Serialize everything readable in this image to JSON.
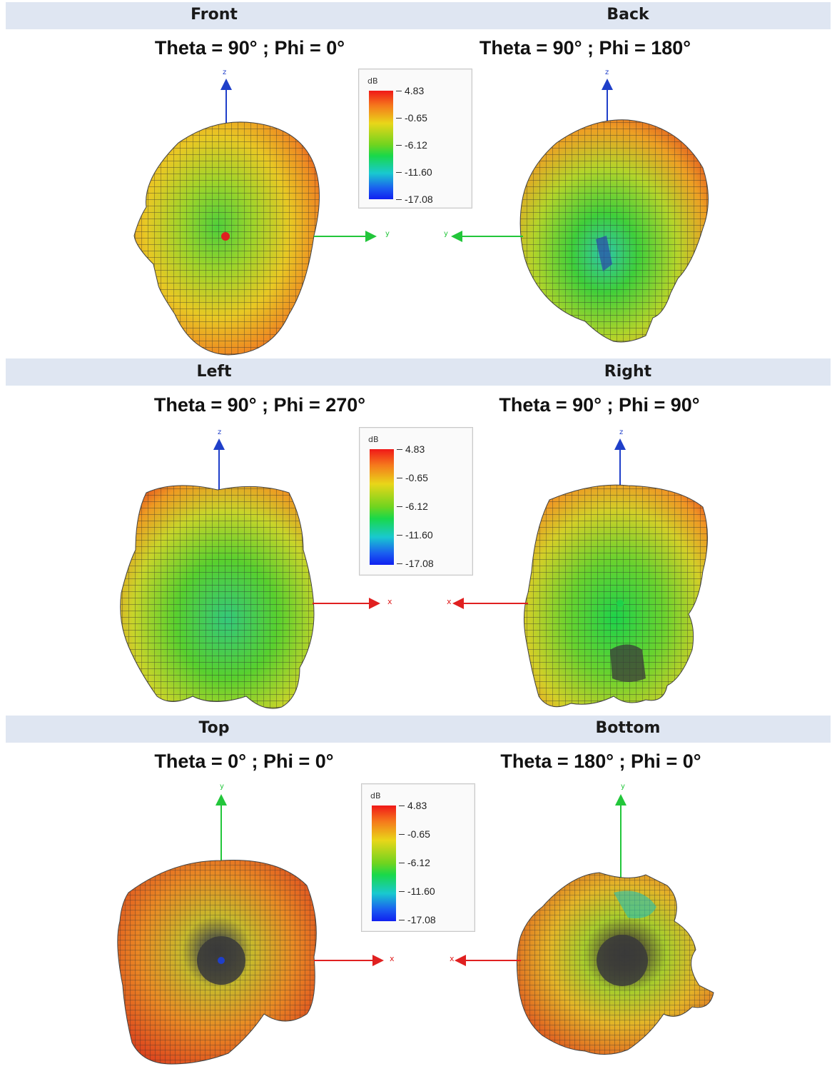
{
  "views": [
    {
      "name": "Front",
      "angles": "Theta = 90° ; Phi = 0°"
    },
    {
      "name": "Back",
      "angles": "Theta = 90° ; Phi = 180°"
    },
    {
      "name": "Left",
      "angles": "Theta = 90° ; Phi = 270°"
    },
    {
      "name": "Right",
      "angles": "Theta = 90° ; Phi = 90°"
    },
    {
      "name": "Top",
      "angles": "Theta = 0° ; Phi = 0°"
    },
    {
      "name": "Bottom",
      "angles": "Theta = 180° ; Phi = 0°"
    }
  ],
  "legend": {
    "unit": "dB",
    "ticks": [
      "4.83",
      "-0.65",
      "-6.12",
      "-11.60",
      "-17.08"
    ]
  },
  "axes": {
    "front": {
      "vertical": "z",
      "horizontal": "y"
    },
    "back": {
      "vertical": "z",
      "horizontal": "y"
    },
    "left": {
      "vertical": "z",
      "horizontal": "x"
    },
    "right": {
      "vertical": "z",
      "horizontal": "x"
    },
    "top": {
      "vertical": "y",
      "horizontal": "x"
    },
    "bottom": {
      "vertical": "y",
      "horizontal": "x"
    }
  },
  "colors": {
    "band": "#dfe6f2",
    "axis_z": "#1f3fc9",
    "axis_y": "#22c63a",
    "axis_x": "#e02020",
    "mesh": "#2b2b2b"
  }
}
